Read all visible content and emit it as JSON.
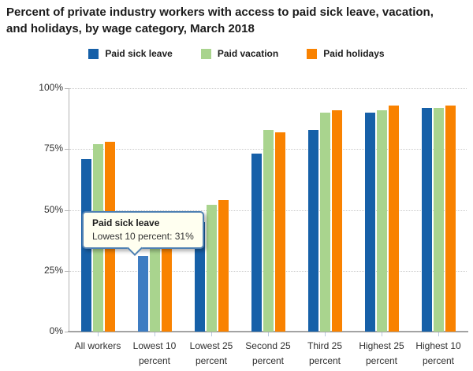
{
  "title": "Percent of private industry workers with access to paid sick leave, vacation, and holidays, by wage category, March 2018",
  "legend": [
    {
      "label": "Paid sick leave",
      "color": "#1660a8"
    },
    {
      "label": "Paid vacation",
      "color": "#a9d48e"
    },
    {
      "label": "Paid holidays",
      "color": "#f98200"
    }
  ],
  "tooltip": {
    "series": "Paid sick leave",
    "text": "Lowest 10 percent: 31%"
  },
  "chart_data": {
    "type": "bar",
    "title": "Percent of private industry workers with access to paid sick leave, vacation, and holidays, by wage category, March 2018",
    "categories": [
      "All workers",
      "Lowest 10 percent",
      "Lowest 25 percent",
      "Second 25 percent",
      "Third 25 percent",
      "Highest 25 percent",
      "Highest 10 percent"
    ],
    "series": [
      {
        "name": "Paid sick leave",
        "color": "#1660a8",
        "values": [
          71,
          31,
          45,
          73,
          83,
          90,
          92
        ]
      },
      {
        "name": "Paid vacation",
        "color": "#a9d48e",
        "values": [
          77,
          40,
          52,
          83,
          90,
          91,
          92
        ]
      },
      {
        "name": "Paid holidays",
        "color": "#f98200",
        "values": [
          78,
          45,
          54,
          82,
          91,
          93,
          93
        ]
      }
    ],
    "ylabel": "",
    "yticks": [
      "100%",
      "75%",
      "50%",
      "25%",
      "0%"
    ],
    "ylim": [
      0,
      100
    ],
    "grid": "dotted horizontal lines at 25/50/75/100",
    "legend_position": "top center",
    "highlighted_bar": {
      "series": "Paid sick leave",
      "category": "Lowest 10 percent",
      "value": 31,
      "highlight_color": "#3d7cc2"
    }
  }
}
